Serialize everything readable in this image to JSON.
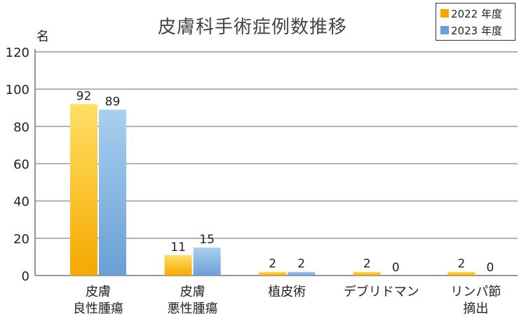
{
  "chart_data": {
    "type": "bar",
    "title": "皮膚科手術症例数推移",
    "ylabel": "名",
    "xlabel": "",
    "ylim": [
      0,
      120
    ],
    "yticks": [
      0,
      20,
      40,
      60,
      80,
      100,
      120
    ],
    "grid": true,
    "legend_position": "top-right",
    "categories": [
      [
        "皮膚",
        "良性腫瘍"
      ],
      [
        "皮膚",
        "悪性腫瘍"
      ],
      [
        "植皮術"
      ],
      [
        "デブリドマン"
      ],
      [
        "リンパ節",
        "摘出"
      ]
    ],
    "series": [
      {
        "name": "2022 年度",
        "values": [
          92,
          11,
          2,
          2,
          2
        ],
        "color": "#f5a800",
        "color_light": "#ffe066"
      },
      {
        "name": "2023 年度",
        "values": [
          89,
          15,
          2,
          0,
          0
        ],
        "color": "#6a9fd4",
        "color_light": "#a8d0f0"
      }
    ]
  }
}
